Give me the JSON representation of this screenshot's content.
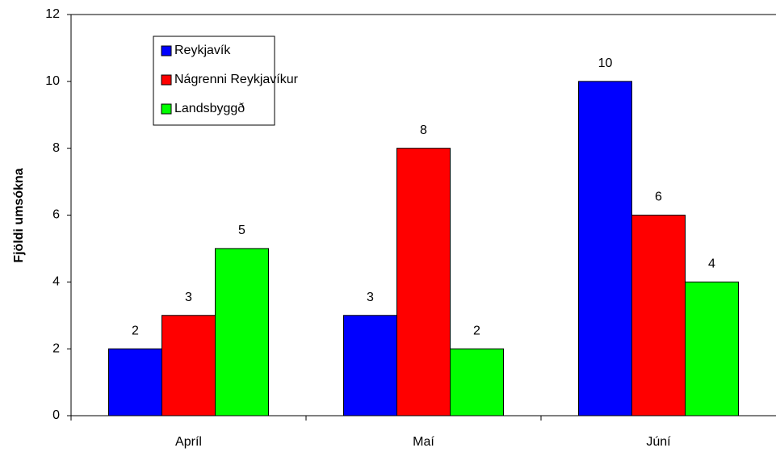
{
  "chart_data": {
    "type": "bar",
    "y_label": "Fjöldi umsókna",
    "categories": [
      "Apríl",
      "Maí",
      "Júní"
    ],
    "series": [
      {
        "name": "Reykjavík",
        "color": "#0000ff",
        "values": [
          2,
          3,
          10
        ]
      },
      {
        "name": "Nágrenni Reykjavíkur",
        "color": "#ff0000",
        "values": [
          3,
          8,
          6
        ]
      },
      {
        "name": "Landsbyggð",
        "color": "#00ff00",
        "values": [
          5,
          2,
          4
        ]
      }
    ],
    "ylim": [
      0,
      12
    ],
    "yticks": [
      0,
      2,
      4,
      6,
      8,
      10,
      12
    ],
    "legend": "upper left"
  }
}
